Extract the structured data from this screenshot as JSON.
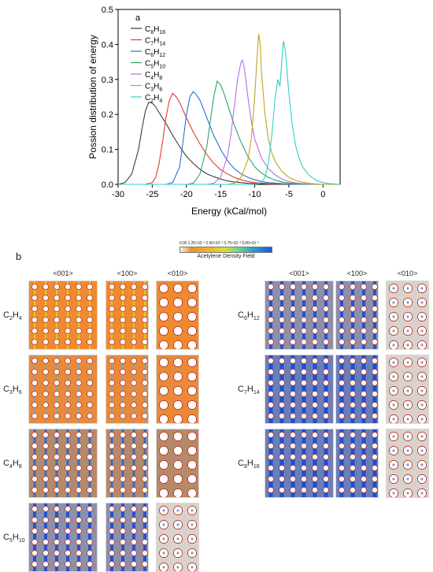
{
  "chart_data": {
    "type": "line",
    "panel_label": "a",
    "xlabel": "Energy (kCal/mol)",
    "ylabel": "Possion distribution of energy",
    "xlim": [
      -30,
      2.5
    ],
    "ylim": [
      0,
      0.5
    ],
    "xticks": [
      -30,
      -25,
      -20,
      -15,
      -10,
      -5,
      0
    ],
    "yticks": [
      0.0,
      0.1,
      0.2,
      0.3,
      0.4,
      0.5
    ],
    "legend_position": "top-left",
    "grid": false,
    "series": [
      {
        "name": "C8H16",
        "base": "C",
        "n1": "8",
        "h": "H",
        "n2": "16",
        "color": "#3c3c3c",
        "x": [
          -30,
          -29,
          -28,
          -27,
          -26.5,
          -26,
          -25.5,
          -25,
          -24.5,
          -24,
          -23,
          -22,
          -21,
          -20,
          -19,
          -18,
          -17,
          -16,
          -15,
          -14,
          -13,
          -12,
          -11,
          -10,
          -8,
          -6,
          -4,
          -2,
          0,
          2.5
        ],
        "y": [
          0,
          0.005,
          0.03,
          0.1,
          0.16,
          0.21,
          0.235,
          0.232,
          0.222,
          0.205,
          0.175,
          0.14,
          0.108,
          0.08,
          0.06,
          0.043,
          0.03,
          0.022,
          0.015,
          0.01,
          0.007,
          0.005,
          0.003,
          0.002,
          0.001,
          0,
          0,
          0,
          0,
          0
        ]
      },
      {
        "name": "C7H14",
        "base": "C",
        "n1": "7",
        "h": "H",
        "n2": "14",
        "color": "#e8372e",
        "x": [
          -30,
          -26,
          -25,
          -24.5,
          -24,
          -23.5,
          -23,
          -22.5,
          -22,
          -21.5,
          -21,
          -20,
          -19,
          -18,
          -17,
          -16,
          -15,
          -14,
          -13,
          -12,
          -11,
          -10,
          -8,
          -6,
          -4,
          -2,
          0,
          2.5
        ],
        "y": [
          0,
          0,
          0.005,
          0.02,
          0.06,
          0.12,
          0.19,
          0.24,
          0.26,
          0.25,
          0.235,
          0.19,
          0.15,
          0.115,
          0.085,
          0.06,
          0.042,
          0.03,
          0.02,
          0.013,
          0.008,
          0.005,
          0.002,
          0.001,
          0,
          0,
          0,
          0
        ]
      },
      {
        "name": "C6H12",
        "base": "C",
        "n1": "6",
        "h": "H",
        "n2": "12",
        "color": "#2a6fcf",
        "x": [
          -30,
          -23,
          -22,
          -21,
          -20.5,
          -20,
          -19.5,
          -19,
          -18.5,
          -18,
          -17.5,
          -17,
          -16,
          -15,
          -14,
          -13,
          -12,
          -11,
          -10,
          -9,
          -8,
          -6,
          -4,
          -2,
          0,
          2.5
        ],
        "y": [
          0,
          0,
          0.005,
          0.05,
          0.12,
          0.2,
          0.25,
          0.265,
          0.255,
          0.24,
          0.215,
          0.19,
          0.14,
          0.1,
          0.068,
          0.045,
          0.03,
          0.02,
          0.013,
          0.008,
          0.005,
          0.002,
          0,
          0,
          0,
          0
        ]
      },
      {
        "name": "C5H10",
        "base": "C",
        "n1": "5",
        "h": "H",
        "n2": "10",
        "color": "#2aa562",
        "x": [
          -30,
          -20,
          -19,
          -18,
          -17,
          -16.5,
          -16,
          -15.5,
          -15,
          -14.5,
          -14,
          -13,
          -12,
          -11,
          -10,
          -9,
          -8,
          -7,
          -6,
          -5,
          -4,
          -2,
          0,
          2.5
        ],
        "y": [
          0,
          0,
          0.003,
          0.03,
          0.11,
          0.18,
          0.25,
          0.295,
          0.285,
          0.26,
          0.23,
          0.17,
          0.12,
          0.08,
          0.05,
          0.032,
          0.02,
          0.012,
          0.007,
          0.004,
          0.002,
          0,
          0,
          0
        ]
      },
      {
        "name": "C4H8",
        "base": "C",
        "n1": "4",
        "h": "H",
        "n2": "8",
        "color": "#b56ee0",
        "x": [
          -30,
          -17,
          -16,
          -15,
          -14,
          -13.5,
          -13,
          -12.5,
          -12,
          -11.8,
          -11.5,
          -11,
          -10.5,
          -10,
          -9,
          -8,
          -7,
          -6,
          -5,
          -4,
          -3,
          -2,
          0,
          2.5
        ],
        "y": [
          0,
          0,
          0.003,
          0.02,
          0.08,
          0.14,
          0.22,
          0.3,
          0.35,
          0.355,
          0.33,
          0.25,
          0.18,
          0.13,
          0.075,
          0.045,
          0.027,
          0.015,
          0.008,
          0.004,
          0.002,
          0.001,
          0,
          0
        ]
      },
      {
        "name": "C3H6",
        "base": "C",
        "n1": "3",
        "h": "H",
        "n2": "6",
        "color": "#c9a01e",
        "x": [
          -30,
          -14,
          -13,
          -12,
          -11,
          -10.5,
          -10,
          -9.6,
          -9.4,
          -9.2,
          -9,
          -8.5,
          -8,
          -7.5,
          -7,
          -6,
          -5,
          -4,
          -3,
          -2,
          -1,
          0,
          2.5
        ],
        "y": [
          0,
          0,
          0.003,
          0.02,
          0.07,
          0.13,
          0.25,
          0.38,
          0.43,
          0.4,
          0.32,
          0.2,
          0.13,
          0.09,
          0.065,
          0.037,
          0.02,
          0.011,
          0.006,
          0.003,
          0.001,
          0,
          0
        ]
      },
      {
        "name": "C2H4",
        "base": "C",
        "n1": "2",
        "h": "H",
        "n2": "4",
        "color": "#2fcfc9",
        "x": [
          -30,
          -10,
          -9,
          -8.5,
          -8,
          -7.5,
          -7,
          -6.6,
          -6.3,
          -6,
          -5.8,
          -5.5,
          -5,
          -4.5,
          -4,
          -3.5,
          -3,
          -2,
          -1,
          0,
          1,
          2.5
        ],
        "y": [
          0,
          0,
          0.005,
          0.02,
          0.06,
          0.14,
          0.25,
          0.3,
          0.28,
          0.36,
          0.41,
          0.38,
          0.26,
          0.17,
          0.11,
          0.075,
          0.05,
          0.025,
          0.012,
          0.005,
          0.002,
          0
        ]
      }
    ]
  },
  "panel_b": {
    "label": "b",
    "colorbar": {
      "ticks": "0.00  1.25×10⁻³  2.50×10⁻³  3.75×10⁻³  5.00×10⁻³",
      "label": "Acetylene Density Field"
    },
    "directions": [
      "<001>",
      "<100>",
      "<010>"
    ],
    "left_rows": [
      {
        "base": "C",
        "n1": "2",
        "h": "H",
        "n2": "4",
        "level": 1
      },
      {
        "base": "C",
        "n1": "3",
        "h": "H",
        "n2": "6",
        "level": 2
      },
      {
        "base": "C",
        "n1": "4",
        "h": "H",
        "n2": "8",
        "level": 3
      },
      {
        "base": "C",
        "n1": "5",
        "h": "H",
        "n2": "10",
        "level": 4
      }
    ],
    "right_rows": [
      {
        "base": "C",
        "n1": "6",
        "h": "H",
        "n2": "12",
        "level": 4
      },
      {
        "base": "C",
        "n1": "7",
        "h": "H",
        "n2": "14",
        "level": 5
      },
      {
        "base": "C",
        "n1": "8",
        "h": "H",
        "n2": "16",
        "level": 5
      }
    ]
  }
}
